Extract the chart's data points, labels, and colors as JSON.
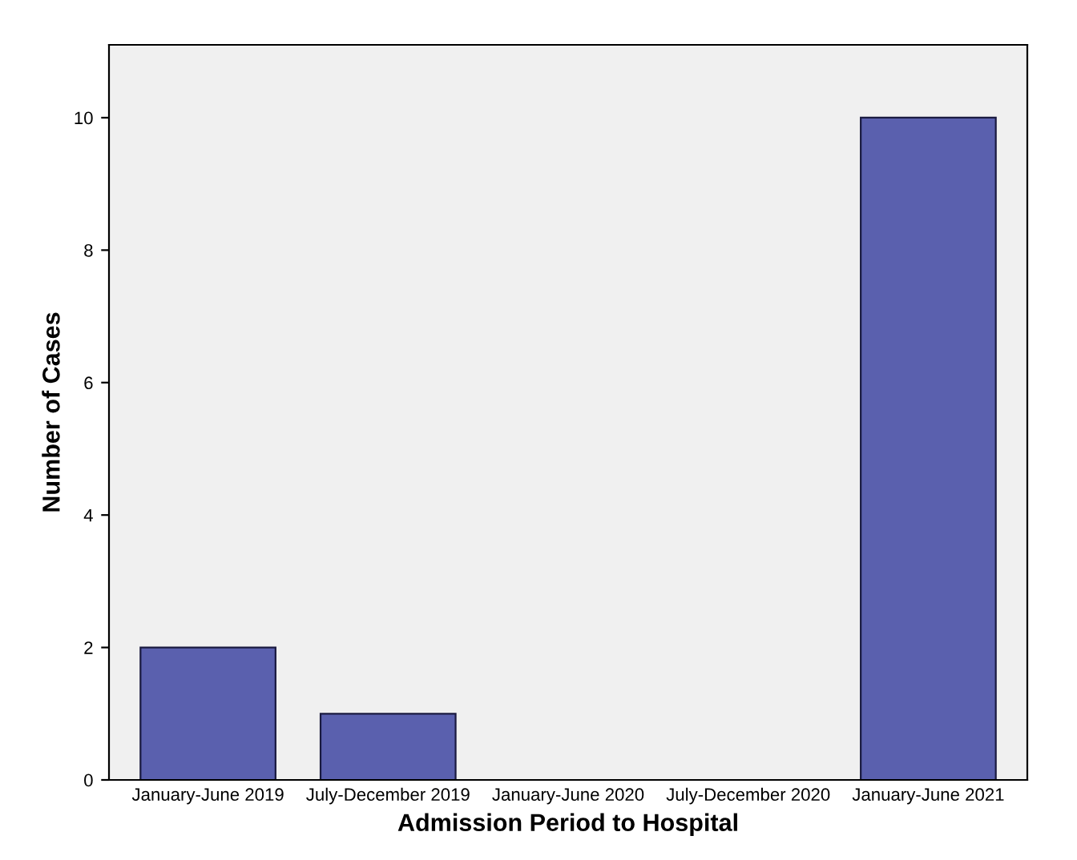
{
  "chart_data": {
    "type": "bar",
    "xlabel": "Admission Period to Hospital",
    "ylabel": "Number of Cases",
    "categories": [
      "January-June 2019",
      "July-December 2019",
      "January-June 2020",
      "July-December 2020",
      "January-June 2021"
    ],
    "values": [
      2,
      1,
      0,
      0,
      10
    ],
    "color": "#5a60ae",
    "ylim": [
      0,
      11.1
    ],
    "yticks": [
      0,
      2,
      4,
      6,
      8,
      10
    ],
    "grid": false,
    "legend": false
  }
}
